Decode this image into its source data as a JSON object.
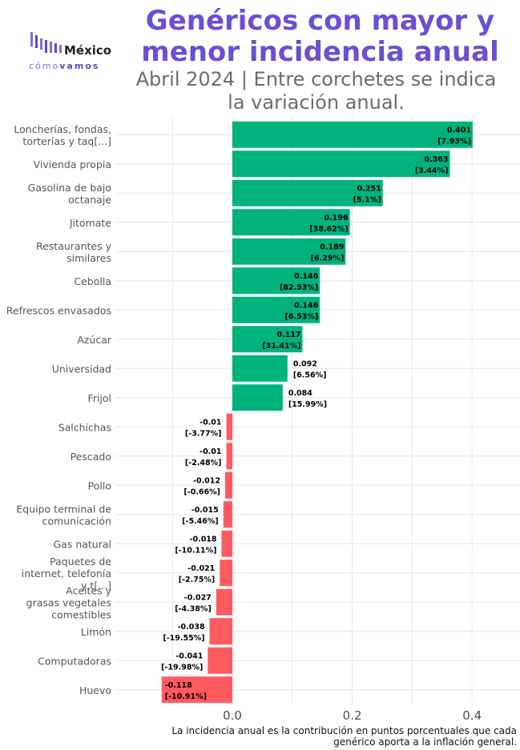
{
  "header": {
    "title_line1": "Genéricos con mayor y",
    "title_line2": "menor incidencia anual",
    "subtitle_line1": "Abril 2024 | Entre corchetes se indica",
    "subtitle_line2": "la variación anual."
  },
  "logo": {
    "word": "México",
    "sub_light": "cómo",
    "sub_bold": "vamos"
  },
  "caption": {
    "line1": "La incidencia anual es la contribución en puntos porcentuales que cada",
    "line2": "genérico aporta a la inflación general."
  },
  "colors": {
    "positive": "#00B37D",
    "negative": "#FF5A5F",
    "title": "#6A4FD3",
    "grid": "#e6e6e6"
  },
  "chart_data": {
    "type": "bar",
    "orientation": "horizontal",
    "xlim": [
      -0.12,
      0.44
    ],
    "x_ticks": [
      0.0,
      0.2,
      0.4
    ],
    "x_tick_labels": [
      "0.0",
      "0.2",
      "0.4"
    ],
    "grid": true,
    "categories": [
      [
        "Loncherías, fondas,",
        "torterías y taq[...]"
      ],
      [
        "Vivienda propia"
      ],
      [
        "Gasolina de bajo",
        "octanaje"
      ],
      [
        "Jitomate"
      ],
      [
        "Restaurantes y",
        "similares"
      ],
      [
        "Cebolla"
      ],
      [
        "Refrescos envasados"
      ],
      [
        "Azúcar"
      ],
      [
        "Universidad"
      ],
      [
        "Frijol"
      ],
      [
        "Salchichas"
      ],
      [
        "Pescado"
      ],
      [
        "Pollo"
      ],
      [
        "Equipo terminal de",
        "comunicación"
      ],
      [
        "Gas natural"
      ],
      [
        "Paquetes de",
        "internet, telefonía",
        "y t[...]"
      ],
      [
        "Aceites y",
        "grasas vegetales",
        "comestibles"
      ],
      [
        "Limón"
      ],
      [
        "Computadoras"
      ],
      [
        "Huevo"
      ]
    ],
    "values": [
      0.401,
      0.363,
      0.251,
      0.196,
      0.189,
      0.146,
      0.146,
      0.117,
      0.092,
      0.084,
      -0.01,
      -0.01,
      -0.012,
      -0.015,
      -0.018,
      -0.021,
      -0.027,
      -0.038,
      -0.041,
      -0.118
    ],
    "value_labels": [
      "0.401",
      "0.363",
      "0.251",
      "0.196",
      "0.189",
      "0.146",
      "0.146",
      "0.117",
      "0.092",
      "0.084",
      "-0.01",
      "-0.01",
      "-0.012",
      "-0.015",
      "-0.018",
      "-0.021",
      "-0.027",
      "-0.038",
      "-0.041",
      "-0.118"
    ],
    "annual_variation_labels": [
      "[7.93%]",
      "[3.44%]",
      "[5.1%]",
      "[38.62%]",
      "[6.29%]",
      "[82.53%]",
      "[6.53%]",
      "[31.41%]",
      "[6.56%]",
      "[15.99%]",
      "[-3.77%]",
      "[-2.48%]",
      "[-0.66%]",
      "[-5.46%]",
      "[-10.11%]",
      "[-2.75%]",
      "[-4.38%]",
      "[-19.55%]",
      "[-19.98%]",
      "[-10.91%]"
    ]
  }
}
